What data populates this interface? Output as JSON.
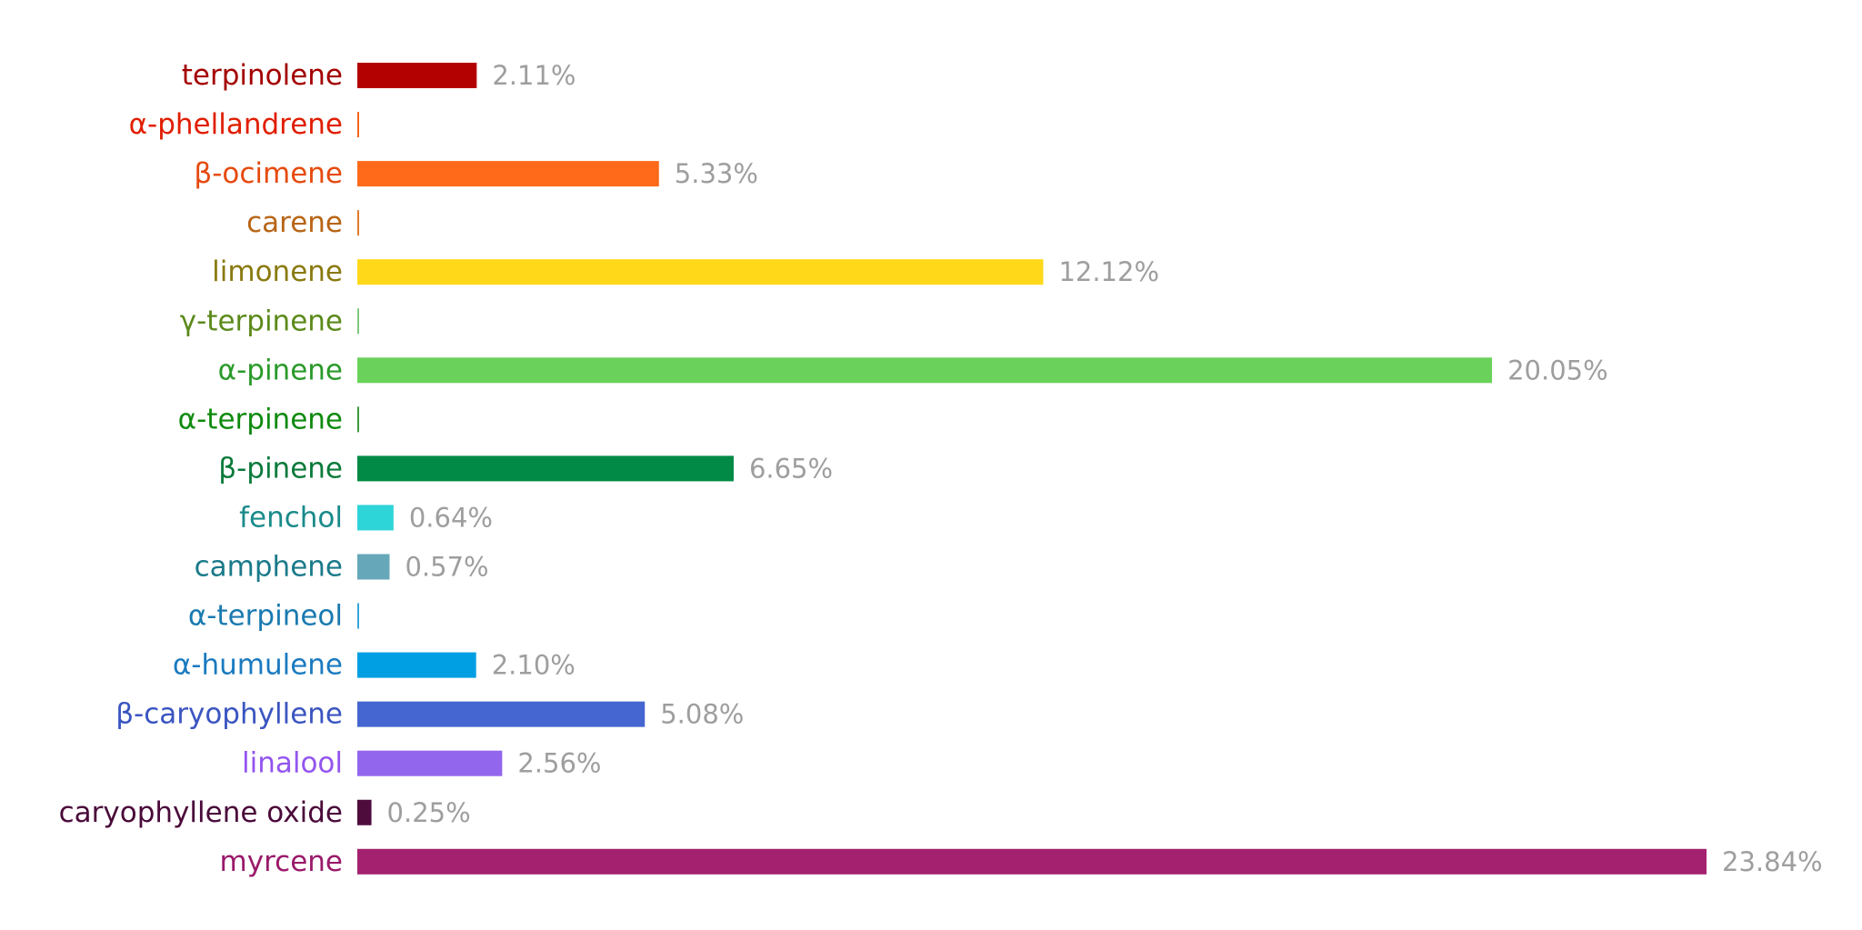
{
  "chart_data": {
    "type": "bar",
    "orientation": "horizontal",
    "title": "",
    "xlabel": "",
    "ylabel": "",
    "xlim": [
      0,
      23.84
    ],
    "grid": false,
    "legend": "none",
    "value_suffix": "%",
    "categories": [
      "terpinolene",
      "α-phellandrene",
      "β-ocimene",
      "carene",
      "limonene",
      "γ-terpinene",
      "α-pinene",
      "α-terpinene",
      "β-pinene",
      "fenchol",
      "camphene",
      "α-terpineol",
      "α-humulene",
      "β-caryophyllene",
      "linalool",
      "caryophyllene oxide",
      "myrcene"
    ],
    "values": [
      2.11,
      0,
      5.33,
      0,
      12.12,
      0,
      20.05,
      0,
      6.65,
      0.64,
      0.57,
      0,
      2.1,
      5.08,
      2.56,
      0.25,
      23.84
    ],
    "value_labels": [
      "2.11%",
      "",
      "5.33%",
      "",
      "12.12%",
      "",
      "20.05%",
      "",
      "6.65%",
      "0.64%",
      "0.57%",
      "",
      "2.10%",
      "5.08%",
      "2.56%",
      "0.25%",
      "23.84%"
    ],
    "bar_colors": [
      "#b30000",
      "#f26419",
      "#ff6a1a",
      "#e07a2a",
      "#ffd81a",
      "#7fc97f",
      "#6ad15a",
      "#3a9a3a",
      "#008a45",
      "#2dd4d8",
      "#66a8ba",
      "#35a6d8",
      "#009fe3",
      "#4566d0",
      "#9366ee",
      "#4e0c3c",
      "#a3216f"
    ],
    "label_colors": [
      "#a30000",
      "#e01e00",
      "#e64a0f",
      "#b86516",
      "#8a7a10",
      "#5b8a1a",
      "#2a9a2a",
      "#0e8a0e",
      "#0a7a3a",
      "#1a8a8a",
      "#1a7a8a",
      "#1a7ab0",
      "#1a7ac0",
      "#3a55c0",
      "#9355ee",
      "#4a0a3a",
      "#9a1a6a"
    ]
  }
}
